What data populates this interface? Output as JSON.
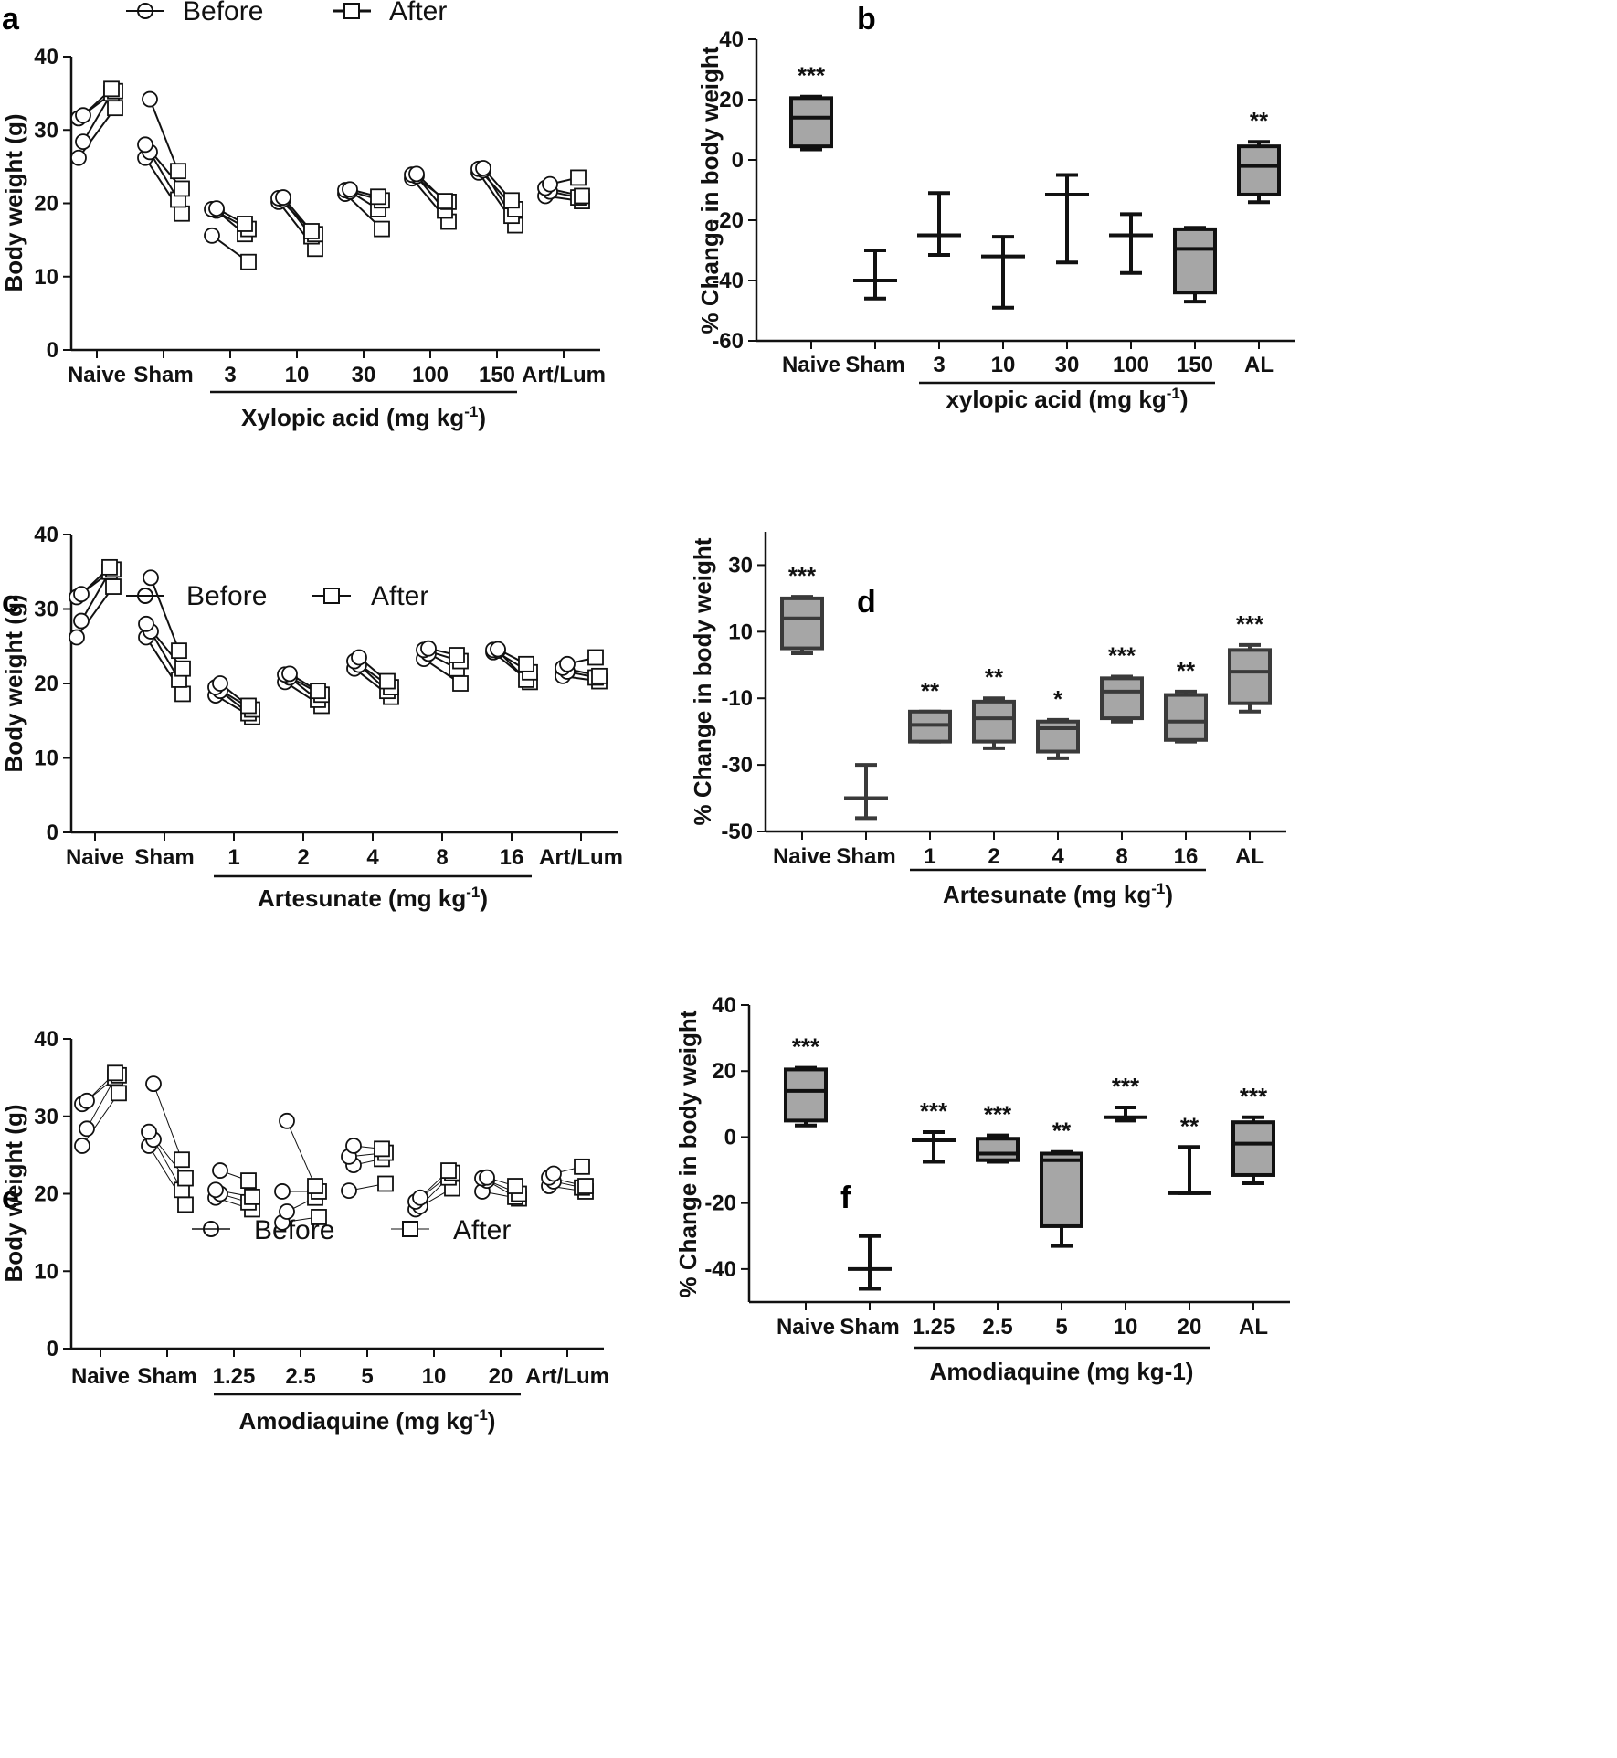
{
  "figure": {
    "panels": {
      "a": {
        "label": "a",
        "legend_before": "Before",
        "legend_after": "After"
      },
      "b": {
        "label": "b"
      },
      "c": {
        "label": "c",
        "legend_before": "Before",
        "legend_after": "After"
      },
      "d": {
        "label": "d"
      },
      "e": {
        "label": "e",
        "legend_before": "Before",
        "legend_after": "After"
      },
      "f": {
        "label": "f"
      }
    }
  },
  "chart_data": [
    {
      "id": "a",
      "type": "scatter",
      "subtype": "before-after",
      "ylabel": "Body weight (g)",
      "ylim": [
        0,
        40
      ],
      "yticks": [
        "0",
        "10",
        "20",
        "30",
        "40"
      ],
      "categories": [
        "Naive",
        "Sham",
        "3",
        "10",
        "30",
        "100",
        "150",
        "Art/Lum"
      ],
      "group_label": "Xylopic acid (mg kg",
      "group_label_sup": "-1",
      "group_label_end": ")",
      "group_span": [
        2,
        6
      ],
      "series": [
        {
          "name": "Before",
          "values": [
            [
              26.2,
              28.4,
              31.6,
              32.0
            ],
            [
              26.2,
              27.0,
              28.0,
              34.2
            ],
            [
              15.6,
              19.0,
              19.2,
              19.3
            ],
            [
              20.2,
              20.5,
              20.7,
              20.8
            ],
            [
              21.3,
              21.6,
              21.8,
              21.9
            ],
            [
              23.4,
              23.7,
              23.9,
              24.0
            ],
            [
              24.2,
              24.5,
              24.7,
              24.8
            ],
            [
              21.0,
              21.6,
              22.1,
              22.6
            ]
          ]
        },
        {
          "name": "After",
          "values": [
            [
              33.0,
              35.0,
              35.3,
              35.6
            ],
            [
              18.6,
              20.5,
              22.0,
              24.4
            ],
            [
              12.0,
              15.8,
              16.5,
              17.2
            ],
            [
              13.8,
              15.5,
              15.8,
              16.2
            ],
            [
              16.5,
              19.2,
              20.4,
              20.9
            ],
            [
              17.5,
              19.0,
              20.2,
              20.3
            ],
            [
              17.0,
              18.3,
              19.2,
              20.4
            ],
            [
              20.3,
              20.8,
              21.0,
              23.5
            ]
          ]
        }
      ]
    },
    {
      "id": "b",
      "type": "box",
      "ylabel": "% Change in body weight",
      "ylim": [
        -60,
        40
      ],
      "yticks": [
        "-60",
        "-40",
        "-20",
        "0",
        "20",
        "40"
      ],
      "categories": [
        "Naive",
        "Sham",
        "3",
        "10",
        "30",
        "100",
        "150",
        "AL"
      ],
      "group_label": "xylopic acid (mg kg",
      "group_label_sup": "-1",
      "group_label_end": ")",
      "group_span": [
        2,
        6
      ],
      "boxes": [
        {
          "min": 3.5,
          "q1": 4.5,
          "median": 14,
          "q3": 20.5,
          "max": 21,
          "filled": true,
          "sig": "***"
        },
        {
          "min": -46,
          "q1": -40,
          "median": -40,
          "q3": -40,
          "max": -30,
          "filled": false,
          "sig": ""
        },
        {
          "min": -31.5,
          "q1": -25,
          "median": -25,
          "q3": -25,
          "max": -11,
          "filled": false,
          "sig": ""
        },
        {
          "min": -49,
          "q1": -32,
          "median": -32,
          "q3": -32,
          "max": -25.5,
          "filled": false,
          "sig": ""
        },
        {
          "min": -34,
          "q1": -11.5,
          "median": -11.5,
          "q3": -11.5,
          "max": -5,
          "filled": false,
          "sig": ""
        },
        {
          "min": -37.5,
          "q1": -25,
          "median": -25,
          "q3": -25,
          "max": -18,
          "filled": false,
          "sig": ""
        },
        {
          "min": -47,
          "q1": -44,
          "median": -29.5,
          "q3": -23,
          "max": -22.5,
          "filled": true,
          "sig": ""
        },
        {
          "min": -14,
          "q1": -11.5,
          "median": -2,
          "q3": 4.5,
          "max": 6,
          "filled": true,
          "sig": "**"
        }
      ]
    },
    {
      "id": "c",
      "type": "scatter",
      "subtype": "before-after",
      "ylabel": "Body weight (g)",
      "ylim": [
        0,
        40
      ],
      "yticks": [
        "0",
        "10",
        "20",
        "30",
        "40"
      ],
      "categories": [
        "Naive",
        "Sham",
        "1",
        "2",
        "4",
        "8",
        "16",
        "Art/Lum"
      ],
      "group_label": "Artesunate (mg kg",
      "group_label_sup": "-1",
      "group_label_end": ")",
      "group_span": [
        2,
        6
      ],
      "series": [
        {
          "name": "Before",
          "values": [
            [
              26.2,
              28.4,
              31.6,
              32.0
            ],
            [
              26.2,
              27.0,
              28.0,
              34.2
            ],
            [
              18.4,
              19.0,
              19.5,
              20.0
            ],
            [
              20.2,
              20.8,
              21.2,
              21.3
            ],
            [
              22.0,
              22.5,
              23.0,
              23.5
            ],
            [
              23.3,
              24.0,
              24.5,
              24.7
            ],
            [
              24.2,
              24.4,
              24.5,
              24.6
            ],
            [
              21.0,
              21.6,
              22.1,
              22.6
            ]
          ]
        },
        {
          "name": "After",
          "values": [
            [
              33.0,
              35.0,
              35.3,
              35.6
            ],
            [
              18.6,
              20.5,
              22.0,
              24.4
            ],
            [
              15.5,
              16.0,
              16.5,
              17.0
            ],
            [
              17.0,
              17.8,
              18.5,
              19.0
            ],
            [
              18.2,
              19.0,
              19.5,
              20.3
            ],
            [
              20.0,
              22.0,
              23.0,
              23.8
            ],
            [
              20.2,
              20.5,
              21.5,
              22.6
            ],
            [
              20.3,
              20.8,
              21.0,
              23.5
            ]
          ]
        }
      ]
    },
    {
      "id": "d",
      "type": "box",
      "ylabel": "% Change in body weight",
      "ylim": [
        -50,
        40
      ],
      "yticks": [
        "-50",
        "-30",
        "-10",
        "10",
        "30"
      ],
      "ytick_values": [
        -50,
        -30,
        -10,
        10,
        30
      ],
      "categories": [
        "Naive",
        "Sham",
        "1",
        "2",
        "4",
        "8",
        "16",
        "AL"
      ],
      "group_label": "Artesunate (mg kg",
      "group_label_sup": "-1",
      "group_label_end": ")",
      "group_span": [
        2,
        6
      ],
      "boxes": [
        {
          "min": 3.5,
          "q1": 5,
          "median": 14,
          "q3": 20,
          "max": 20.5,
          "filled": true,
          "sig": "***"
        },
        {
          "min": -46,
          "q1": -40,
          "median": -40,
          "q3": -40,
          "max": -30,
          "filled": false,
          "sig": ""
        },
        {
          "min": -23,
          "q1": -23,
          "median": -18,
          "q3": -14,
          "max": -14,
          "filled": true,
          "sig": "**"
        },
        {
          "min": -25,
          "q1": -23,
          "median": -16,
          "q3": -11,
          "max": -10,
          "filled": true,
          "sig": "**"
        },
        {
          "min": -28,
          "q1": -26,
          "median": -19,
          "q3": -17,
          "max": -16.5,
          "filled": true,
          "sig": "*"
        },
        {
          "min": -17,
          "q1": -16,
          "median": -8,
          "q3": -4,
          "max": -3.5,
          "filled": true,
          "sig": "***"
        },
        {
          "min": -23,
          "q1": -22.5,
          "median": -17,
          "q3": -9,
          "max": -8,
          "filled": true,
          "sig": "**"
        },
        {
          "min": -14,
          "q1": -11.5,
          "median": -2,
          "q3": 4.5,
          "max": 6,
          "filled": true,
          "sig": "***"
        }
      ]
    },
    {
      "id": "e",
      "type": "scatter",
      "subtype": "before-after",
      "ylabel": "Body weight (g)",
      "ylim": [
        0,
        40
      ],
      "yticks": [
        "0",
        "10",
        "20",
        "30",
        "40"
      ],
      "categories": [
        "Naive",
        "Sham",
        "1.25",
        "2.5",
        "5",
        "10",
        "20",
        "Art/Lum"
      ],
      "group_label": "Amodiaquine (mg kg",
      "group_label_sup": "-1",
      "group_label_end": ")",
      "group_span": [
        2,
        6
      ],
      "series": [
        {
          "name": "Before",
          "values": [
            [
              26.2,
              28.4,
              31.6,
              32.0
            ],
            [
              26.2,
              27.0,
              28.0,
              34.2
            ],
            [
              19.5,
              20.0,
              20.5,
              23.0
            ],
            [
              16.3,
              17.7,
              20.3,
              29.4
            ],
            [
              20.4,
              23.7,
              24.8,
              26.2
            ],
            [
              18.0,
              18.4,
              19.0,
              19.5
            ],
            [
              20.3,
              21.7,
              22.0,
              22.1
            ],
            [
              21.0,
              21.6,
              22.1,
              22.6
            ]
          ]
        },
        {
          "name": "After",
          "values": [
            [
              33.0,
              35.0,
              35.3,
              35.6
            ],
            [
              18.6,
              20.5,
              22.0,
              24.4
            ],
            [
              18.0,
              18.9,
              19.6,
              21.7
            ],
            [
              17.0,
              19.5,
              20.3,
              21.0
            ],
            [
              21.3,
              24.5,
              25.3,
              25.8
            ],
            [
              20.7,
              22.1,
              22.7,
              23.0
            ],
            [
              19.4,
              19.6,
              20.0,
              21.0
            ],
            [
              20.3,
              20.8,
              21.0,
              23.5
            ]
          ]
        }
      ]
    },
    {
      "id": "f",
      "type": "box",
      "ylabel": "% Change in body weight",
      "ylim": [
        -50,
        40
      ],
      "yticks": [
        "-40",
        "-20",
        "0",
        "20",
        "40"
      ],
      "ytick_values": [
        -40,
        -20,
        0,
        20,
        40
      ],
      "categories": [
        "Naive",
        "Sham",
        "1.25",
        "2.5",
        "5",
        "10",
        "20",
        "AL"
      ],
      "group_label": "Amodiaquine (mg kg-1)",
      "group_label_sup": "",
      "group_label_end": "",
      "group_span": [
        2,
        6
      ],
      "boxes": [
        {
          "min": 3.5,
          "q1": 5,
          "median": 14,
          "q3": 20.5,
          "max": 21,
          "filled": true,
          "sig": "***"
        },
        {
          "min": -46,
          "q1": -40,
          "median": -40,
          "q3": -40,
          "max": -30,
          "filled": false,
          "sig": ""
        },
        {
          "min": -7.5,
          "q1": -1,
          "median": -1,
          "q3": -1,
          "max": 1.5,
          "filled": false,
          "sig": "***"
        },
        {
          "min": -7.5,
          "q1": -7,
          "median": -5,
          "q3": -0.5,
          "max": 0.5,
          "filled": true,
          "sig": "***"
        },
        {
          "min": -33,
          "q1": -27,
          "median": -7,
          "q3": -5,
          "max": -4.5,
          "filled": true,
          "sig": "**"
        },
        {
          "min": 5,
          "q1": 6,
          "median": 6,
          "q3": 6,
          "max": 9,
          "filled": false,
          "sig": "***"
        },
        {
          "min": -17,
          "q1": -17,
          "median": -17,
          "q3": -17,
          "max": -3,
          "filled": false,
          "sig": "**"
        },
        {
          "min": -14,
          "q1": -11.5,
          "median": -2,
          "q3": 4.5,
          "max": 6,
          "filled": true,
          "sig": "***"
        }
      ]
    }
  ]
}
